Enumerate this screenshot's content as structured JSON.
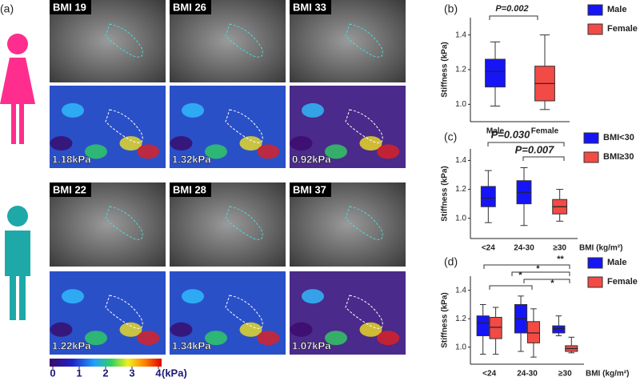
{
  "panel_labels": [
    "(a)",
    "(b)",
    "(c)",
    "(d)"
  ],
  "images": [
    {
      "bmi": "BMI 19",
      "stiffness": "1.18kPa"
    },
    {
      "bmi": "BMI 26",
      "stiffness": "1.32kPa"
    },
    {
      "bmi": "BMI 33",
      "stiffness": "0.92kPa"
    },
    {
      "bmi": "BMI 22",
      "stiffness": "1.22kPa"
    },
    {
      "bmi": "BMI 28",
      "stiffness": "1.34kPa"
    },
    {
      "bmi": "BMI 37",
      "stiffness": "1.07kPa"
    }
  ],
  "colorbar": {
    "ticks": [
      0,
      1,
      2,
      3,
      4
    ],
    "unit": "(kPa)"
  },
  "chart_data": [
    {
      "type": "box",
      "ylabel": "Stiffness (kPa)",
      "categories": [
        "Male",
        "Female"
      ],
      "ylim": [
        0.9,
        1.5
      ],
      "yticks": [
        {
          "value": 1,
          "label": "1.0"
        },
        1.2,
        1.4
      ],
      "series": [
        {
          "name": "Male",
          "color": "#1515f5",
          "min": [
            0.99,
            null
          ],
          "q1": [
            1.1,
            null
          ],
          "median": [
            1.19,
            null
          ],
          "q3": [
            1.26,
            null
          ],
          "max": [
            1.36,
            null
          ]
        },
        {
          "name": "Female",
          "color": "#f24a45",
          "min": [
            null,
            0.97
          ],
          "q1": [
            null,
            1.02
          ],
          "median": [
            null,
            1.12
          ],
          "q3": [
            null,
            1.22
          ],
          "max": [
            null,
            1.4
          ]
        }
      ],
      "annotations": [
        "P=0.002"
      ]
    },
    {
      "type": "box",
      "ylabel": "Stiffness (kPa)",
      "xlabel": "BMI (kg/m²)",
      "categories": [
        "<24",
        "24-30",
        "≥30"
      ],
      "ylim": [
        0.86,
        1.48
      ],
      "yticks": [
        {
          "value": 1,
          "label": "1.0"
        },
        1.2,
        1.4
      ],
      "series": [
        {
          "name": "BMI<30",
          "color": "#1515f5",
          "min": [
            0.97,
            0.95,
            null
          ],
          "q1": [
            1.08,
            1.1,
            null
          ],
          "median": [
            1.14,
            1.18,
            null
          ],
          "q3": [
            1.22,
            1.26,
            null
          ],
          "max": [
            1.33,
            1.35,
            null
          ]
        },
        {
          "name": "BMI≥30",
          "color": "#f24a45",
          "min": [
            null,
            null,
            0.98
          ],
          "q1": [
            null,
            null,
            1.03
          ],
          "median": [
            null,
            null,
            1.08
          ],
          "q3": [
            null,
            null,
            1.13
          ],
          "max": [
            null,
            null,
            1.2
          ]
        }
      ],
      "annotations": [
        "P=0.030",
        "P=0.007"
      ]
    },
    {
      "type": "box",
      "ylabel": "Stiffness (kPa)",
      "xlabel": "BMI (kg/m²)",
      "categories": [
        "<24",
        "24-30",
        "≥30"
      ],
      "ylim": [
        0.88,
        1.5
      ],
      "yticks": [
        {
          "value": 1,
          "label": "1.0"
        },
        1.2,
        1.4
      ],
      "series": [
        {
          "name": "Male",
          "color": "#1515f5",
          "min": [
            0.95,
            0.97,
            1.08
          ],
          "q1": [
            1.08,
            1.1,
            1.1
          ],
          "median": [
            1.17,
            1.2,
            1.13
          ],
          "q3": [
            1.22,
            1.3,
            1.15
          ],
          "max": [
            1.3,
            1.36,
            1.22
          ]
        },
        {
          "name": "Female",
          "color": "#f24a45",
          "min": [
            0.95,
            0.93,
            0.96
          ],
          "q1": [
            1.06,
            1.03,
            0.97
          ],
          "median": [
            1.14,
            1.1,
            0.99
          ],
          "q3": [
            1.21,
            1.18,
            1.01
          ],
          "max": [
            1.28,
            1.27,
            1.07
          ]
        }
      ],
      "annotations": [
        "**",
        "*",
        "*",
        "*"
      ]
    }
  ]
}
